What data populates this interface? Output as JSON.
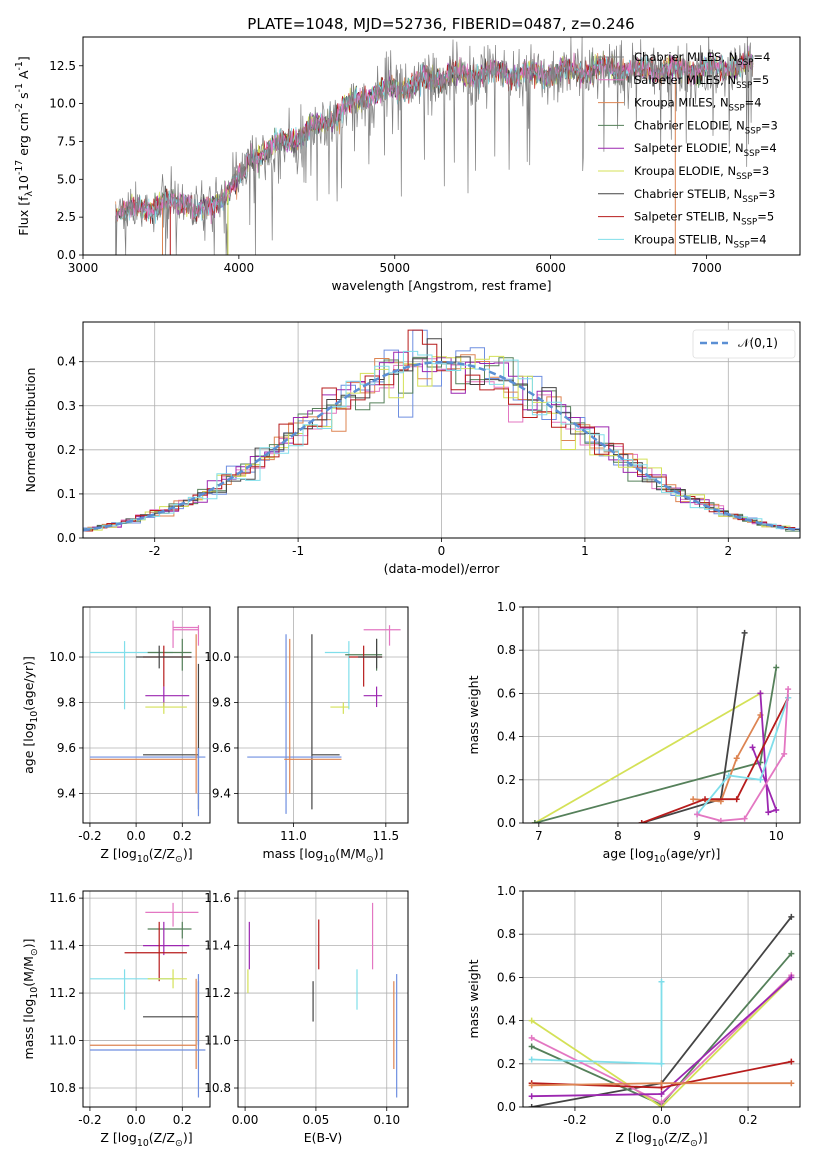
{
  "figure": {
    "title": "PLATE=1048, MJD=52736, FIBERID=0487, z=0.246"
  },
  "chart_data": [
    {
      "id": "spectrum",
      "type": "line",
      "title": "PLATE=1048, MJD=52736, FIBERID=0487, z=0.246",
      "xlabel": "wavelength [Angstrom, rest frame]",
      "ylabel": "Flux [f$_\\lambda$10$^{-17}$ erg cm$^{-2}$ s$^{-1}$ A$^{-1}$]",
      "xlim": [
        3000,
        7600
      ],
      "ylim": [
        0,
        14.4
      ],
      "xticks": [
        3000,
        4000,
        5000,
        6000,
        7000
      ],
      "yticks": [
        0.0,
        2.5,
        5.0,
        7.5,
        10.0,
        12.5
      ],
      "legend_position": "top-right",
      "grid": false,
      "data_range_x": [
        3210,
        7300
      ],
      "envelope": {
        "x": [
          3230,
          3500,
          3800,
          4000,
          4500,
          4800,
          5000,
          5300,
          5600,
          6000,
          6300,
          6600,
          7000,
          7300
        ],
        "y": [
          2.8,
          3.3,
          4.0,
          6.0,
          8.5,
          10.5,
          11.0,
          11.8,
          12.0,
          12.0,
          12.3,
          12.2,
          12.3,
          12.6
        ]
      },
      "series": [
        {
          "name": "Chabrier MILES, N$_{SSP}$=4",
          "color": "#7f7f7f"
        },
        {
          "name": "Salpeter MILES, N$_{SSP}$=5",
          "color": "#e377c2"
        },
        {
          "name": "Kroupa MILES, N$_{SSP}$=4",
          "color": "#dd8452"
        },
        {
          "name": "Chabrier ELODIE, N$_{SSP}$=3",
          "color": "#55805a"
        },
        {
          "name": "Salpeter ELODIE, N$_{SSP}$=4",
          "color": "#9c27b0"
        },
        {
          "name": "Kroupa ELODIE, N$_{SSP}$=3",
          "color": "#d4e157"
        },
        {
          "name": "Chabrier STELIB, N$_{SSP}$=3",
          "color": "#444444"
        },
        {
          "name": "Salpeter STELIB, N$_{SSP}$=5",
          "color": "#b71c1c"
        },
        {
          "name": "Kroupa STELIB, N$_{SSP}$=4",
          "color": "#80deea"
        }
      ]
    },
    {
      "id": "residuals",
      "type": "line",
      "xlabel": "(data-model)/error",
      "ylabel": "Normed distribution",
      "xlim": [
        -2.5,
        2.5
      ],
      "ylim": [
        0,
        0.49
      ],
      "xticks": [
        -2,
        -1,
        0,
        1,
        2
      ],
      "yticks": [
        0.0,
        0.1,
        0.2,
        0.3,
        0.4
      ],
      "grid": true,
      "legend_position": "top-right",
      "gaussian": {
        "name": "$\\mathcal{N}(0,1)$",
        "mean": 0,
        "sigma": 1,
        "color": "#5b8fd4"
      },
      "hist_colors": [
        "#6f8fe0",
        "#e377c2",
        "#dd8452",
        "#55805a",
        "#9c27b0",
        "#d4e157",
        "#444444",
        "#b71c1c",
        "#80deea"
      ]
    },
    {
      "id": "age_vs_Z",
      "type": "scatter",
      "xlabel": "Z [log$_{10}$(Z/Z$_\\odot$)]",
      "ylabel": "age  [log$_{10}$(age/yr)]",
      "xlim": [
        -0.23,
        0.32
      ],
      "ylim": [
        9.27,
        10.22
      ],
      "xticks": [
        -0.2,
        0.0,
        0.2
      ],
      "yticks": [
        9.4,
        9.6,
        9.8,
        10.0
      ],
      "grid": true,
      "points": [
        {
          "x": 0.27,
          "y": 10.12,
          "xerr": 0.01,
          "yerr": [
            0.08,
            0.8
          ],
          "hline": [
            0.16,
            0.27
          ],
          "color": "#e377c2"
        },
        {
          "x": 0.16,
          "y": 10.02,
          "xerr": 0.01,
          "yerr": [
            0.06,
            0.04
          ],
          "hline": [
            -0.2,
            0.16
          ],
          "color": "#80deea"
        },
        {
          "x": 0.2,
          "y": 10.01,
          "xerr": 0.01,
          "yerr": [
            0.08,
            0.06
          ],
          "hline": [
            0.05,
            0.24
          ],
          "color": "#55805a"
        },
        {
          "x": 0.12,
          "y": 10.0,
          "xerr": 0.01,
          "yerr": [
            0.13,
            0.05
          ],
          "hline": [
            0.05,
            0.23
          ],
          "color": "#b71c1c"
        },
        {
          "x": 0.05,
          "y": 9.83,
          "xerr": 0.01,
          "yerr": [
            0.05,
            0.04
          ],
          "hline": [
            0.05,
            0.23
          ],
          "color": "#9c27b0"
        },
        {
          "x": 0.12,
          "y": 9.77,
          "xerr": 0.01,
          "yerr": [
            0.03,
            0.03
          ],
          "hline": [
            0.05,
            0.23
          ],
          "color": "#d4e157"
        },
        {
          "x": 0.26,
          "y": 9.57,
          "xerr": 0.01,
          "yerr": [
            0.01,
            0.4
          ],
          "hline": [
            0.03,
            0.27
          ],
          "color": "#444444"
        },
        {
          "x": 0.27,
          "y": 9.56,
          "xerr": 0.01,
          "yerr": [
            0.25,
            0.5
          ],
          "hline": [
            -0.2,
            0.27
          ],
          "color": "#6f8fe0"
        },
        {
          "x": 0.26,
          "y": 9.55,
          "xerr": 0.01,
          "yerr": [
            0.15,
            0.4
          ],
          "hline": [
            -0.2,
            0.26
          ],
          "color": "#dd8452"
        },
        {
          "x": -0.05,
          "y": 9.92,
          "xerr": 0.0,
          "yerr": [
            0.15,
            0.15
          ],
          "hline": [
            -0.2,
            -0.05
          ],
          "color": "#80deea"
        }
      ]
    },
    {
      "id": "age_vs_mass",
      "type": "scatter",
      "xlabel": "mass [log$_{10}$(M/M$_\\odot$)]",
      "ylabel": "",
      "xlim": [
        10.7,
        11.62
      ],
      "ylim": [
        9.27,
        10.22
      ],
      "xticks": [
        11.0,
        11.5
      ],
      "yticks": [
        9.4,
        9.6,
        9.8,
        10.0
      ],
      "grid": true
    },
    {
      "id": "weight_vs_age",
      "type": "line",
      "xlabel": "age  [log$_{10}$(age/yr)]",
      "ylabel": "mass weight",
      "xlim": [
        6.8,
        10.3
      ],
      "ylim": [
        0,
        1.0
      ],
      "xticks": [
        7,
        8,
        9,
        10
      ],
      "yticks": [
        0.0,
        0.2,
        0.4,
        0.6,
        0.8,
        1.0
      ],
      "grid": true,
      "series": [
        {
          "color": "#d4e157",
          "x": [
            6.95,
            9.8
          ],
          "y": [
            0.0,
            0.6
          ]
        },
        {
          "color": "#55805a",
          "x": [
            6.95,
            9.8,
            10.0
          ],
          "y": [
            0.0,
            0.28,
            0.72
          ]
        },
        {
          "color": "#444444",
          "x": [
            8.3,
            9.3,
            9.6
          ],
          "y": [
            0.0,
            0.11,
            0.88
          ]
        },
        {
          "color": "#dd8452",
          "x": [
            8.95,
            9.3,
            9.5,
            9.8
          ],
          "y": [
            0.11,
            0.1,
            0.3,
            0.5
          ]
        },
        {
          "color": "#9c27b0",
          "x": [
            9.8,
            9.9,
            10.0,
            9.7
          ],
          "y": [
            0.6,
            0.05,
            0.06,
            0.35
          ]
        },
        {
          "color": "#b71c1c",
          "x": [
            8.3,
            9.1,
            9.5,
            10.15
          ],
          "y": [
            0.0,
            0.11,
            0.11,
            0.58
          ]
        },
        {
          "color": "#80deea",
          "x": [
            9.0,
            9.4,
            9.8,
            10.15
          ],
          "y": [
            0.04,
            0.22,
            0.2,
            0.58
          ]
        },
        {
          "color": "#e377c2",
          "x": [
            9.0,
            9.3,
            9.6,
            10.1,
            10.15
          ],
          "y": [
            0.04,
            0.01,
            0.02,
            0.32,
            0.62
          ]
        }
      ]
    },
    {
      "id": "mass_vs_Z",
      "type": "scatter",
      "xlabel": "Z [log$_{10}$(Z/Z$_\\odot$)]",
      "ylabel": "mass [log$_{10}$(M/M$_\\odot$)]",
      "xlim": [
        -0.23,
        0.32
      ],
      "ylim": [
        10.72,
        11.63
      ],
      "xticks": [
        -0.2,
        0.0,
        0.2
      ],
      "yticks": [
        10.8,
        11.0,
        11.2,
        11.4,
        11.6
      ],
      "grid": true
    },
    {
      "id": "mass_vs_EBV",
      "type": "scatter",
      "xlabel": "E(B-V)",
      "ylabel": "",
      "xlim": [
        -0.005,
        0.115
      ],
      "ylim": [
        10.72,
        11.63
      ],
      "xticks": [
        0.0,
        0.05,
        0.1
      ],
      "yticks": [
        10.8,
        11.0,
        11.2,
        11.4,
        11.6
      ],
      "grid": true
    },
    {
      "id": "weight_vs_Z",
      "type": "line",
      "xlabel": "Z [log$_{10}$(Z/Z$_\\odot$)]",
      "ylabel": "mass weight",
      "xlim": [
        -0.32,
        0.32
      ],
      "ylim": [
        0,
        1.0
      ],
      "xticks": [
        -0.2,
        0.0,
        0.2
      ],
      "yticks": [
        0.0,
        0.2,
        0.4,
        0.6,
        0.8,
        1.0
      ],
      "grid": true,
      "series": [
        {
          "color": "#444444",
          "x": [
            -0.3,
            0.0,
            0.3
          ],
          "y": [
            0.0,
            0.11,
            0.88
          ]
        },
        {
          "color": "#55805a",
          "x": [
            -0.3,
            0.0,
            0.3
          ],
          "y": [
            0.28,
            0.01,
            0.71
          ]
        },
        {
          "color": "#d4e157",
          "x": [
            -0.3,
            0.0,
            0.3
          ],
          "y": [
            0.4,
            0.0,
            0.6
          ]
        },
        {
          "color": "#e377c2",
          "x": [
            -0.3,
            0.0,
            0.3
          ],
          "y": [
            0.32,
            0.02,
            0.61
          ]
        },
        {
          "color": "#9c27b0",
          "x": [
            -0.3,
            0.0,
            0.3
          ],
          "y": [
            0.05,
            0.06,
            0.6
          ]
        },
        {
          "color": "#80deea",
          "x": [
            -0.3,
            0.0,
            0.0
          ],
          "y": [
            0.22,
            0.2,
            0.58
          ]
        },
        {
          "color": "#b71c1c",
          "x": [
            -0.3,
            0.0,
            0.3
          ],
          "y": [
            0.11,
            0.09,
            0.21
          ]
        },
        {
          "color": "#dd8452",
          "x": [
            -0.3,
            0.0,
            0.3
          ],
          "y": [
            0.1,
            0.11,
            0.11
          ]
        }
      ]
    }
  ]
}
